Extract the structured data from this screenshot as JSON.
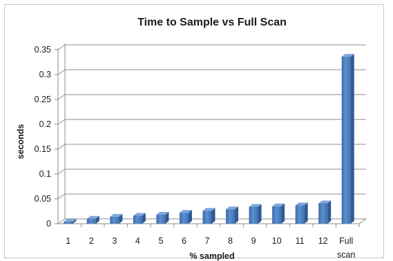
{
  "chart_data": {
    "type": "bar",
    "title": "Time to Sample vs Full Scan",
    "xlabel": "% sampled",
    "ylabel": "seconds",
    "categories": [
      "1",
      "2",
      "3",
      "4",
      "5",
      "6",
      "7",
      "8",
      "9",
      "10",
      "11",
      "12",
      "Full scan"
    ],
    "values": [
      0.004,
      0.01,
      0.014,
      0.016,
      0.018,
      0.022,
      0.026,
      0.029,
      0.034,
      0.035,
      0.037,
      0.041,
      0.336
    ],
    "ylim": [
      0,
      0.35
    ],
    "yticks": [
      "0",
      "0.05",
      "0.1",
      "0.15",
      "0.2",
      "0.25",
      "0.3",
      "0.35"
    ],
    "grid": true,
    "legend": "none",
    "bar_color": "#4a7ebb"
  }
}
